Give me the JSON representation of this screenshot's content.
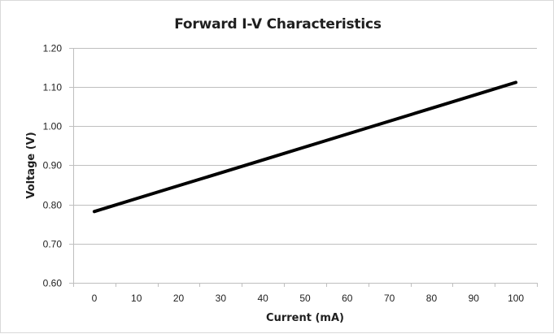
{
  "chart_data": {
    "type": "line",
    "title": "Forward I-V Characteristics",
    "xlabel": "Current (mA)",
    "ylabel": "Voltage (V)",
    "x_ticks": [
      "0",
      "10",
      "20",
      "30",
      "40",
      "50",
      "60",
      "70",
      "80",
      "90",
      "100"
    ],
    "y_ticks": [
      "0.60",
      "0.70",
      "0.80",
      "0.90",
      "1.00",
      "1.10",
      "1.20"
    ],
    "xlim": [
      0,
      100
    ],
    "ylim": [
      0.6,
      1.2
    ],
    "grid": "horizontal",
    "legend": "none",
    "series": [
      {
        "x": [
          0,
          10,
          20,
          30,
          40,
          50,
          60,
          70,
          80,
          90,
          100
        ],
        "y": [
          0.782,
          0.815,
          0.848,
          0.881,
          0.914,
          0.947,
          0.98,
          1.013,
          1.046,
          1.079,
          1.112
        ],
        "color": "#000000"
      }
    ]
  },
  "colors": {
    "gridline": "#bfbfbf",
    "axis": "#bfbfbf",
    "line": "#000000"
  }
}
